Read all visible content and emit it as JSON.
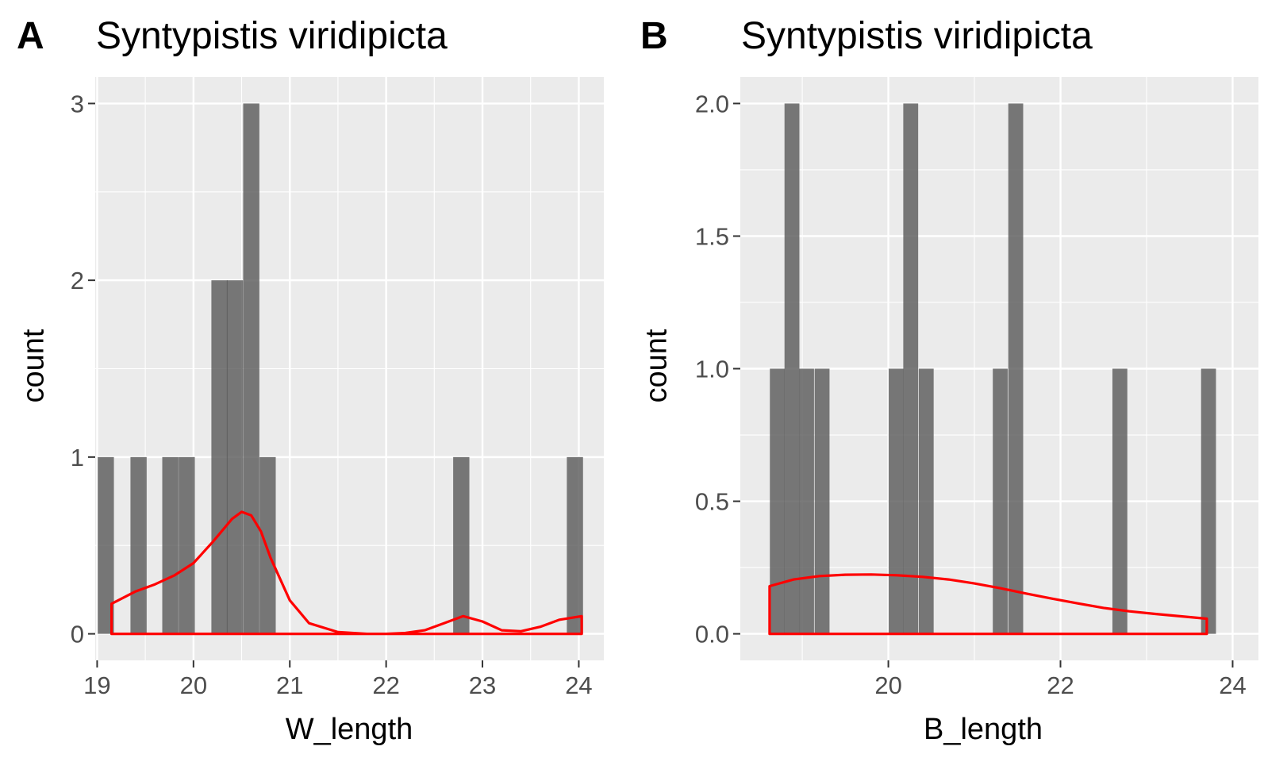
{
  "chart_data": [
    {
      "panel_label": "A",
      "type": "bar",
      "title": "Syntypistis viridipicta",
      "xlabel": "W_length",
      "ylabel": "count",
      "xlim": [
        18.98,
        24.26
      ],
      "ylim": [
        -0.15,
        3.15
      ],
      "xticks": [
        19,
        20,
        21,
        22,
        23,
        24
      ],
      "yticks": [
        0,
        1,
        2,
        3
      ],
      "bar_width": 0.168,
      "bars": [
        {
          "x": 19.09,
          "count": 1
        },
        {
          "x": 19.43,
          "count": 1
        },
        {
          "x": 19.76,
          "count": 1
        },
        {
          "x": 19.93,
          "count": 1
        },
        {
          "x": 20.27,
          "count": 2
        },
        {
          "x": 20.43,
          "count": 2
        },
        {
          "x": 20.6,
          "count": 3
        },
        {
          "x": 20.77,
          "count": 1
        },
        {
          "x": 22.78,
          "count": 1
        },
        {
          "x": 23.96,
          "count": 1
        }
      ],
      "density_series": {
        "name": "density",
        "color": "#ff0000",
        "x": [
          19.15,
          19.4,
          19.6,
          19.8,
          20.0,
          20.2,
          20.4,
          20.5,
          20.6,
          20.7,
          20.8,
          21.0,
          21.2,
          21.5,
          21.8,
          22.0,
          22.2,
          22.4,
          22.6,
          22.8,
          23.0,
          23.2,
          23.4,
          23.6,
          23.8,
          24.03
        ],
        "y": [
          0.17,
          0.24,
          0.28,
          0.33,
          0.4,
          0.52,
          0.65,
          0.69,
          0.67,
          0.58,
          0.43,
          0.19,
          0.06,
          0.01,
          0.0,
          0.0,
          0.005,
          0.02,
          0.06,
          0.1,
          0.07,
          0.02,
          0.015,
          0.04,
          0.08,
          0.1
        ]
      }
    },
    {
      "panel_label": "B",
      "type": "bar",
      "title": "Syntypistis viridipicta",
      "xlabel": "B_length",
      "ylabel": "count",
      "xlim": [
        18.28,
        24.3
      ],
      "ylim": [
        -0.1,
        2.1
      ],
      "xticks": [
        20,
        22,
        24
      ],
      "yticks": [
        0.0,
        0.5,
        1.0,
        1.5,
        2.0
      ],
      "ytick_labels": [
        "0.0",
        "0.5",
        "1.0",
        "1.5",
        "2.0"
      ],
      "bar_width": 0.173,
      "bars": [
        {
          "x": 18.71,
          "count": 1
        },
        {
          "x": 18.88,
          "count": 2
        },
        {
          "x": 19.05,
          "count": 1
        },
        {
          "x": 19.23,
          "count": 1
        },
        {
          "x": 20.09,
          "count": 1
        },
        {
          "x": 20.26,
          "count": 2
        },
        {
          "x": 20.44,
          "count": 1
        },
        {
          "x": 21.3,
          "count": 1
        },
        {
          "x": 21.48,
          "count": 2
        },
        {
          "x": 22.69,
          "count": 1
        },
        {
          "x": 23.72,
          "count": 1
        }
      ],
      "density_series": {
        "name": "density",
        "color": "#ff0000",
        "x": [
          18.62,
          18.9,
          19.2,
          19.5,
          19.8,
          20.1,
          20.4,
          20.7,
          21.0,
          21.3,
          21.6,
          21.9,
          22.2,
          22.5,
          22.8,
          23.1,
          23.4,
          23.7
        ],
        "y": [
          0.18,
          0.205,
          0.218,
          0.223,
          0.224,
          0.221,
          0.215,
          0.205,
          0.19,
          0.172,
          0.152,
          0.133,
          0.115,
          0.098,
          0.085,
          0.075,
          0.066,
          0.057
        ]
      }
    }
  ],
  "colors": {
    "panel_background": "#ebebeb",
    "grid": "#ffffff",
    "bar_fill": "#595959",
    "bar_opacity": 0.8,
    "density": "#ff0000",
    "tick_text": "#4d4d4d",
    "tick_mark": "#333333"
  }
}
